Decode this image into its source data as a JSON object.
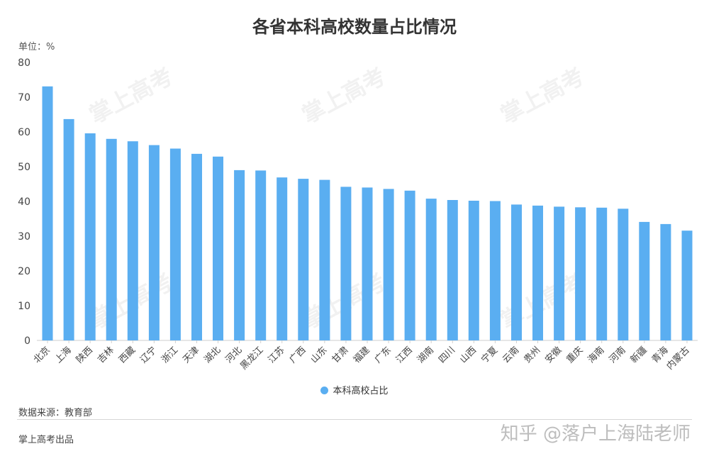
{
  "title": "各省本科高校数量占比情况",
  "unit_label": "单位：%",
  "legend_label": "本科高校占比",
  "source_label": "数据来源：教育部",
  "footer_left": "掌上高考出品",
  "footer_right": "知乎 @落户上海陆老师",
  "watermark": "掌上高考",
  "colors": {
    "bar": "#5aaef1",
    "axis": "#cfcfcf",
    "text": "#444444"
  },
  "chart_data": {
    "type": "bar",
    "title": "各省本科高校数量占比情况",
    "ylabel": "单位：%",
    "ylim": [
      0,
      80
    ],
    "yticks": [
      0,
      10,
      20,
      30,
      40,
      50,
      60,
      70,
      80
    ],
    "grid": false,
    "legend_position": "bottom",
    "categories": [
      "北京",
      "上海",
      "陕西",
      "吉林",
      "西藏",
      "辽宁",
      "浙江",
      "天津",
      "湖北",
      "河北",
      "黑龙江",
      "江苏",
      "广西",
      "山东",
      "甘肃",
      "福建",
      "广东",
      "江西",
      "湖南",
      "四川",
      "山西",
      "宁夏",
      "云南",
      "贵州",
      "安徽",
      "重庆",
      "海南",
      "河南",
      "新疆",
      "青海",
      "内蒙古"
    ],
    "series": [
      {
        "name": "本科高校占比",
        "values": [
          73.1,
          63.7,
          59.6,
          58.0,
          57.3,
          56.2,
          55.2,
          53.7,
          52.9,
          49.0,
          48.9,
          46.9,
          46.5,
          46.2,
          44.2,
          44.0,
          43.6,
          43.1,
          40.8,
          40.4,
          40.2,
          40.1,
          39.1,
          38.8,
          38.5,
          38.3,
          38.2,
          37.9,
          34.1,
          33.5,
          31.6
        ]
      }
    ]
  }
}
